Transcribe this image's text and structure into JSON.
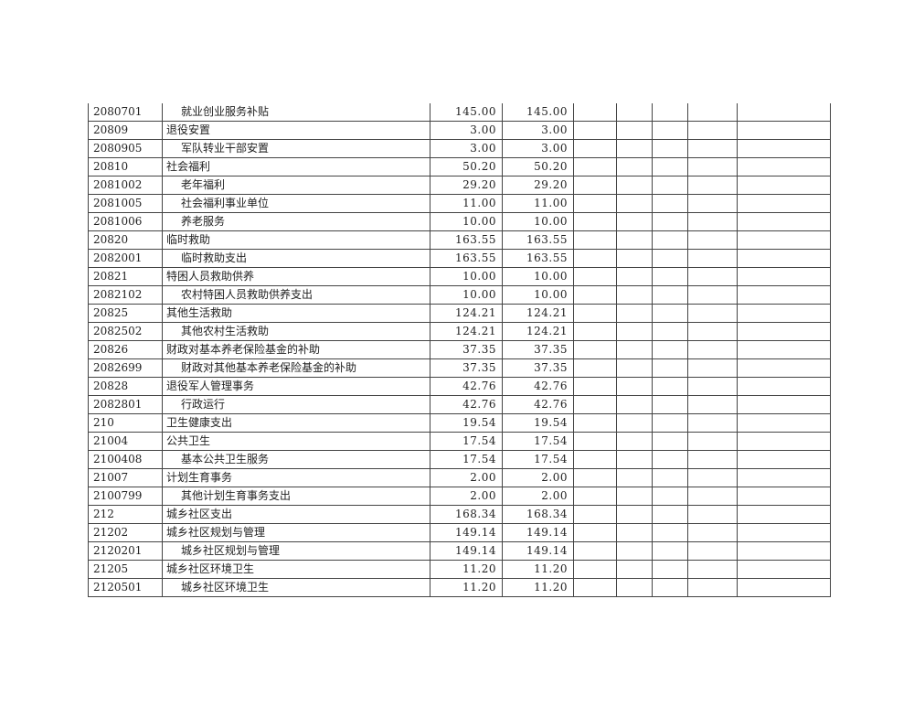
{
  "table": {
    "rows": [
      {
        "code": "2080701",
        "name": "就业创业服务补贴",
        "indent": true,
        "v1": "145.00",
        "v2": "145.00"
      },
      {
        "code": "20809",
        "name": "退役安置",
        "indent": false,
        "v1": "3.00",
        "v2": "3.00"
      },
      {
        "code": "2080905",
        "name": "军队转业干部安置",
        "indent": true,
        "v1": "3.00",
        "v2": "3.00"
      },
      {
        "code": "20810",
        "name": "社会福利",
        "indent": false,
        "v1": "50.20",
        "v2": "50.20"
      },
      {
        "code": "2081002",
        "name": "老年福利",
        "indent": true,
        "v1": "29.20",
        "v2": "29.20"
      },
      {
        "code": "2081005",
        "name": "社会福利事业单位",
        "indent": true,
        "v1": "11.00",
        "v2": "11.00"
      },
      {
        "code": "2081006",
        "name": "养老服务",
        "indent": true,
        "v1": "10.00",
        "v2": "10.00"
      },
      {
        "code": "20820",
        "name": "临时救助",
        "indent": false,
        "v1": "163.55",
        "v2": "163.55"
      },
      {
        "code": "2082001",
        "name": "临时救助支出",
        "indent": true,
        "v1": "163.55",
        "v2": "163.55"
      },
      {
        "code": "20821",
        "name": "特困人员救助供养",
        "indent": false,
        "v1": "10.00",
        "v2": "10.00"
      },
      {
        "code": "2082102",
        "name": "农村特困人员救助供养支出",
        "indent": true,
        "v1": "10.00",
        "v2": "10.00"
      },
      {
        "code": "20825",
        "name": "其他生活救助",
        "indent": false,
        "v1": "124.21",
        "v2": "124.21"
      },
      {
        "code": "2082502",
        "name": "其他农村生活救助",
        "indent": true,
        "v1": "124.21",
        "v2": "124.21"
      },
      {
        "code": "20826",
        "name": "财政对基本养老保险基金的补助",
        "indent": false,
        "v1": "37.35",
        "v2": "37.35"
      },
      {
        "code": "2082699",
        "name": "财政对其他基本养老保险基金的补助",
        "indent": true,
        "v1": "37.35",
        "v2": "37.35"
      },
      {
        "code": "20828",
        "name": "退役军人管理事务",
        "indent": false,
        "v1": "42.76",
        "v2": "42.76"
      },
      {
        "code": "2082801",
        "name": "行政运行",
        "indent": true,
        "v1": "42.76",
        "v2": "42.76"
      },
      {
        "code": "210",
        "name": "卫生健康支出",
        "indent": false,
        "v1": "19.54",
        "v2": "19.54"
      },
      {
        "code": "21004",
        "name": "公共卫生",
        "indent": false,
        "v1": "17.54",
        "v2": "17.54"
      },
      {
        "code": "2100408",
        "name": "基本公共卫生服务",
        "indent": true,
        "v1": "17.54",
        "v2": "17.54"
      },
      {
        "code": "21007",
        "name": "计划生育事务",
        "indent": false,
        "v1": "2.00",
        "v2": "2.00"
      },
      {
        "code": "2100799",
        "name": "其他计划生育事务支出",
        "indent": true,
        "v1": "2.00",
        "v2": "2.00"
      },
      {
        "code": "212",
        "name": "城乡社区支出",
        "indent": false,
        "v1": "168.34",
        "v2": "168.34"
      },
      {
        "code": "21202",
        "name": "城乡社区规划与管理",
        "indent": false,
        "v1": "149.14",
        "v2": "149.14"
      },
      {
        "code": "2120201",
        "name": "城乡社区规划与管理",
        "indent": true,
        "v1": "149.14",
        "v2": "149.14"
      },
      {
        "code": "21205",
        "name": "城乡社区环境卫生",
        "indent": false,
        "v1": "11.20",
        "v2": "11.20"
      },
      {
        "code": "2120501",
        "name": "城乡社区环境卫生",
        "indent": true,
        "v1": "11.20",
        "v2": "11.20"
      }
    ]
  }
}
